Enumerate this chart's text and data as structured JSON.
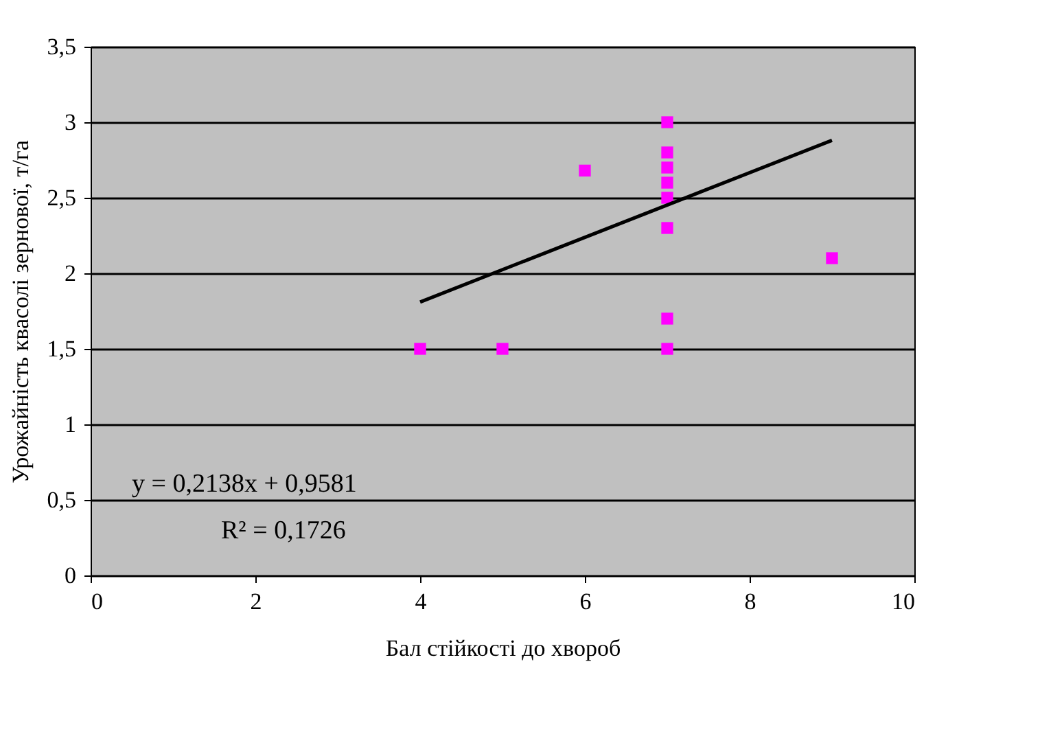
{
  "chart_data": {
    "type": "scatter",
    "xlabel": "Бал стійкості до хвороб",
    "ylabel": "Урожайність квасолі зернової, т/га",
    "series": [
      {
        "color": "#ff00ff",
        "marker": "square",
        "x": [
          4,
          5,
          6,
          7,
          7,
          7,
          7,
          7,
          7,
          7,
          7,
          9
        ],
        "values": [
          1.5,
          1.5,
          2.68,
          3.0,
          2.8,
          2.7,
          2.6,
          2.5,
          2.3,
          1.7,
          1.5,
          2.1
        ]
      },
      {
        "type": "line",
        "color": "#000000",
        "marker": "none",
        "line_style": "solid",
        "x": [
          4,
          9
        ],
        "values": [
          1.81,
          2.88
        ]
      }
    ],
    "annotations": [
      "y = 0,2138x + 0,9581",
      "R² = 0,1726"
    ],
    "xlim": [
      0,
      10
    ],
    "xticks": [
      0,
      2,
      4,
      6,
      8,
      10
    ],
    "ylim": [
      0,
      3.5
    ],
    "yticks": [
      0,
      {
        "value": 0.5,
        "label": "0,5"
      },
      1,
      {
        "value": 1.5,
        "label": "1,5"
      },
      2,
      {
        "value": 2.5,
        "label": "2,5"
      },
      3,
      {
        "value": 3.5,
        "label": "3,5"
      }
    ],
    "grid": "y"
  }
}
